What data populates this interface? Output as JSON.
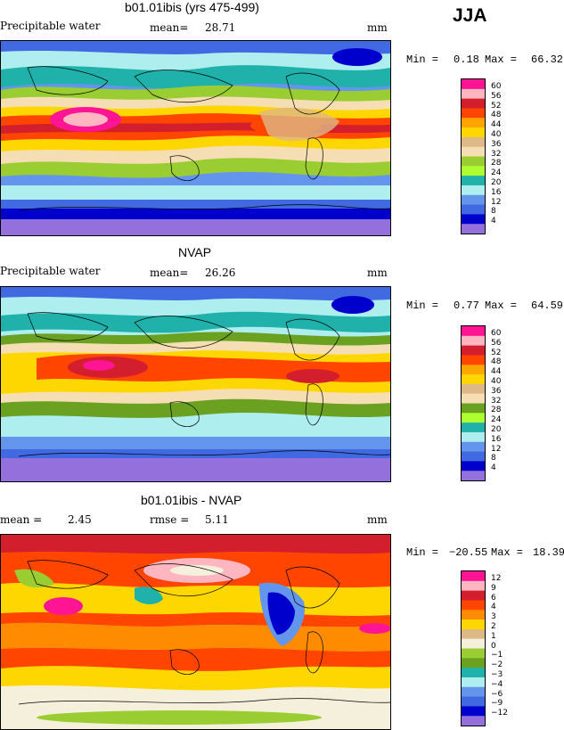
{
  "season": "JJA",
  "panels": [
    {
      "title": "b01.01ibis (yrs 475-499)",
      "variable": "Precipitable water",
      "stat1_label": "mean=",
      "stat1_value": "28.71",
      "unit": "mm",
      "min_label": "Min =",
      "min_value": "0.18",
      "max_label": "Max =",
      "max_value": "66.32",
      "legend": {
        "levels": [
          "60",
          "56",
          "52",
          "48",
          "44",
          "40",
          "36",
          "32",
          "28",
          "24",
          "20",
          "16",
          "12",
          "8",
          "4"
        ],
        "colors": [
          "#ff1493",
          "#ffb6c1",
          "#d21e2d",
          "#ff4500",
          "#ffa500",
          "#ffd700",
          "#deb887",
          "#f5deb3",
          "#9acd32",
          "#adff2f",
          "#20b2aa",
          "#aeeeee",
          "#6495ed",
          "#4169e1",
          "#0000cd",
          "#9370db"
        ]
      }
    },
    {
      "title": "NVAP",
      "variable": "Precipitable water",
      "stat1_label": "mean=",
      "stat1_value": "26.26",
      "unit": "mm",
      "min_label": "Min =",
      "min_value": "0.77",
      "max_label": "Max =",
      "max_value": "64.59",
      "legend": {
        "levels": [
          "60",
          "56",
          "52",
          "48",
          "44",
          "40",
          "36",
          "32",
          "28",
          "24",
          "20",
          "16",
          "12",
          "8",
          "4"
        ],
        "colors": [
          "#ff1493",
          "#ffb6c1",
          "#d21e2d",
          "#ff4500",
          "#ffa500",
          "#ffd700",
          "#deb887",
          "#f5deb3",
          "#6aa121",
          "#adff2f",
          "#20b2aa",
          "#aeeeee",
          "#6495ed",
          "#4169e1",
          "#0000cd",
          "#9370db"
        ]
      }
    },
    {
      "title": "b01.01ibis - NVAP",
      "variable": "",
      "stat1_label": "mean =",
      "stat1_value": "2.45",
      "stat2_label": "rmse =",
      "stat2_value": "5.11",
      "unit": "mm",
      "min_label": "Min =",
      "min_value": "−20.55",
      "max_label": "Max =",
      "max_value": "18.39",
      "legend": {
        "levels": [
          "12",
          "9",
          "6",
          "4",
          "3",
          "2",
          "1",
          "0",
          "−1",
          "−2",
          "−3",
          "−4",
          "−6",
          "−9",
          "−12"
        ],
        "colors": [
          "#ff1493",
          "#ffb6c1",
          "#d21e2d",
          "#ff4500",
          "#ff8c00",
          "#ffd700",
          "#deb887",
          "#f5f0dc",
          "#9acd32",
          "#6aa121",
          "#20b2aa",
          "#aeeeee",
          "#6495ed",
          "#4169e1",
          "#0000cd",
          "#9370db"
        ]
      }
    }
  ]
}
